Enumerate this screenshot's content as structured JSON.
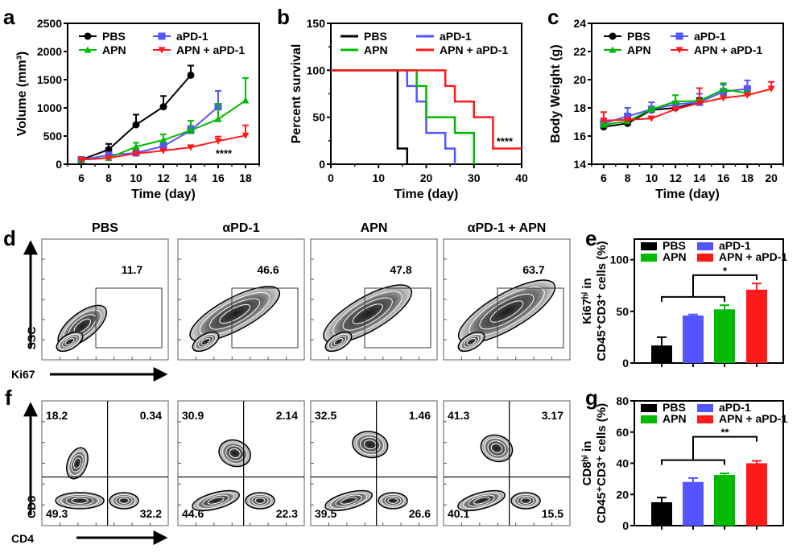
{
  "panel_letters": {
    "a": "a",
    "b": "b",
    "c": "c",
    "d": "d",
    "e": "e",
    "f": "f",
    "g": "g"
  },
  "colors": {
    "PBS": "#000000",
    "aPD-1": "#5555ff",
    "APN": "#00bb00",
    "APN + aPD-1": "#ff1a1a"
  },
  "chart_data": [
    {
      "id": "a",
      "type": "line",
      "title": "",
      "xlabel": "Time (day)",
      "ylabel": "Volume (mm³)",
      "xlim": [
        5,
        19
      ],
      "ylim": [
        0,
        2500
      ],
      "xticks": [
        6,
        8,
        10,
        12,
        14,
        16,
        18
      ],
      "yticks": [
        0,
        500,
        1000,
        1500,
        2000,
        2500
      ],
      "annotation": "****",
      "series": [
        {
          "name": "PBS",
          "marker": "circle",
          "x": [
            6,
            8,
            10,
            12,
            14
          ],
          "y": [
            80,
            260,
            700,
            1020,
            1580
          ],
          "err": [
            20,
            100,
            180,
            190,
            170
          ]
        },
        {
          "name": "aPD-1",
          "marker": "square",
          "x": [
            6,
            8,
            10,
            12,
            14,
            16
          ],
          "y": [
            80,
            160,
            200,
            320,
            600,
            1020
          ],
          "err": [
            20,
            40,
            40,
            60,
            80,
            280
          ]
        },
        {
          "name": "APN",
          "marker": "triangle-up",
          "x": [
            6,
            8,
            10,
            12,
            14,
            16,
            18
          ],
          "y": [
            80,
            110,
            310,
            430,
            600,
            800,
            1130
          ],
          "err": [
            20,
            30,
            70,
            100,
            170,
            270,
            400
          ]
        },
        {
          "name": "APN + aPD-1",
          "marker": "triangle-down",
          "x": [
            6,
            8,
            10,
            12,
            14,
            16,
            18
          ],
          "y": [
            80,
            110,
            190,
            240,
            300,
            410,
            510
          ],
          "err": [
            20,
            20,
            20,
            20,
            30,
            80,
            180
          ]
        }
      ]
    },
    {
      "id": "b",
      "type": "line",
      "subtype": "survival-step",
      "title": "",
      "xlabel": "Time (day)",
      "ylabel": "Percent survival",
      "xlim": [
        0,
        40
      ],
      "ylim": [
        0,
        150
      ],
      "xticks": [
        0,
        10,
        20,
        30,
        40
      ],
      "yticks": [
        0,
        50,
        100,
        150
      ],
      "annotation": "****",
      "series": [
        {
          "name": "PBS",
          "x": [
            0,
            14,
            16
          ],
          "y": [
            100,
            16.7,
            0
          ]
        },
        {
          "name": "aPD-1",
          "x": [
            0,
            16,
            18,
            20,
            24,
            26
          ],
          "y": [
            100,
            83.3,
            66.7,
            33.3,
            16.7,
            0
          ]
        },
        {
          "name": "APN",
          "x": [
            0,
            18,
            20,
            26,
            30
          ],
          "y": [
            100,
            83.3,
            50,
            33.3,
            0
          ]
        },
        {
          "name": "APN + aPD-1",
          "x": [
            0,
            24,
            26,
            30,
            34,
            40
          ],
          "y": [
            100,
            83.3,
            66.7,
            50,
            16.7,
            16.7
          ]
        }
      ]
    },
    {
      "id": "c",
      "type": "line",
      "title": "",
      "xlabel": "Time (day)",
      "ylabel": "Body Weight (g)",
      "xlim": [
        5,
        21
      ],
      "ylim": [
        14,
        24
      ],
      "xticks": [
        6,
        8,
        10,
        12,
        14,
        16,
        18,
        20
      ],
      "yticks": [
        14,
        16,
        18,
        20,
        22,
        24
      ],
      "series": [
        {
          "name": "PBS",
          "marker": "circle",
          "x": [
            6,
            8,
            10,
            12,
            14
          ],
          "y": [
            16.65,
            16.9,
            17.85,
            18.0,
            18.4
          ],
          "err": [
            0.1,
            0.1,
            0.1,
            0.1,
            0.3
          ]
        },
        {
          "name": "aPD-1",
          "marker": "square",
          "x": [
            6,
            8,
            10,
            12,
            14,
            16,
            18
          ],
          "y": [
            16.9,
            17.4,
            17.9,
            18.25,
            18.4,
            19.15,
            19.35
          ],
          "err": [
            0.3,
            0.6,
            0.5,
            0.2,
            0.6,
            0.5,
            0.6
          ]
        },
        {
          "name": "APN",
          "marker": "triangle-up",
          "x": [
            6,
            8,
            10,
            12,
            14,
            16,
            18
          ],
          "y": [
            16.8,
            17.05,
            17.9,
            18.45,
            18.5,
            19.3,
            19.05
          ],
          "err": [
            0.1,
            0.1,
            0.1,
            0.45,
            0.1,
            0.45,
            0.1
          ]
        },
        {
          "name": "APN + aPD-1",
          "marker": "triangle-down",
          "x": [
            6,
            8,
            10,
            12,
            14,
            16,
            18,
            20
          ],
          "y": [
            17.1,
            17.15,
            17.25,
            17.9,
            18.35,
            18.7,
            18.9,
            19.35
          ],
          "err": [
            0.6,
            0.1,
            0.1,
            0.1,
            1.05,
            0.1,
            0.1,
            0.5
          ]
        }
      ]
    },
    {
      "id": "e",
      "type": "bar",
      "title": "",
      "ylabel_lines": [
        "Ki67ʰⁱ in",
        "CD45⁺CD3⁺ cells (%)"
      ],
      "categories": [
        "PBS",
        "aPD-1",
        "APN",
        "APN + aPD-1"
      ],
      "values": [
        17,
        46,
        52,
        71
      ],
      "err": [
        8,
        1,
        4,
        6
      ],
      "ylim": [
        0,
        120
      ],
      "yticks": [
        0,
        50,
        100
      ],
      "significance": {
        "label": "*",
        "lower_bracket": 64,
        "upper_bracket": 85
      }
    },
    {
      "id": "g",
      "type": "bar",
      "title": "",
      "ylabel_lines": [
        "CD8ʰⁱ in",
        "CD45⁺CD3⁺ cells (%)"
      ],
      "categories": [
        "PBS",
        "aPD-1",
        "APN",
        "APN + aPD-1"
      ],
      "values": [
        15,
        28,
        32.5,
        40
      ],
      "err": [
        3,
        2.5,
        1,
        1.5
      ],
      "ylim": [
        0,
        80
      ],
      "yticks": [
        0,
        20,
        40,
        60,
        80
      ],
      "significance": {
        "label": "**",
        "lower_bracket": 42,
        "upper_bracket": 57
      }
    }
  ],
  "flow_d": {
    "titles": [
      "PBS",
      "αPD-1",
      "APN",
      "αPD-1 + APN"
    ],
    "gate_values": [
      "11.7",
      "46.6",
      "47.8",
      "63.7"
    ],
    "y_axis": "SSC",
    "x_axis": "Ki67"
  },
  "flow_f": {
    "y_axis": "CD8",
    "x_axis": "CD4",
    "quadrants": [
      {
        "ul": "18.2",
        "ur": "0.34",
        "ll": "49.3",
        "lr": "32.2"
      },
      {
        "ul": "30.9",
        "ur": "2.14",
        "ll": "44.6",
        "lr": "22.3"
      },
      {
        "ul": "32.5",
        "ur": "1.46",
        "ll": "39.5",
        "lr": "26.6"
      },
      {
        "ul": "41.3",
        "ur": "3.17",
        "ll": "40.1",
        "lr": "15.5"
      }
    ]
  }
}
